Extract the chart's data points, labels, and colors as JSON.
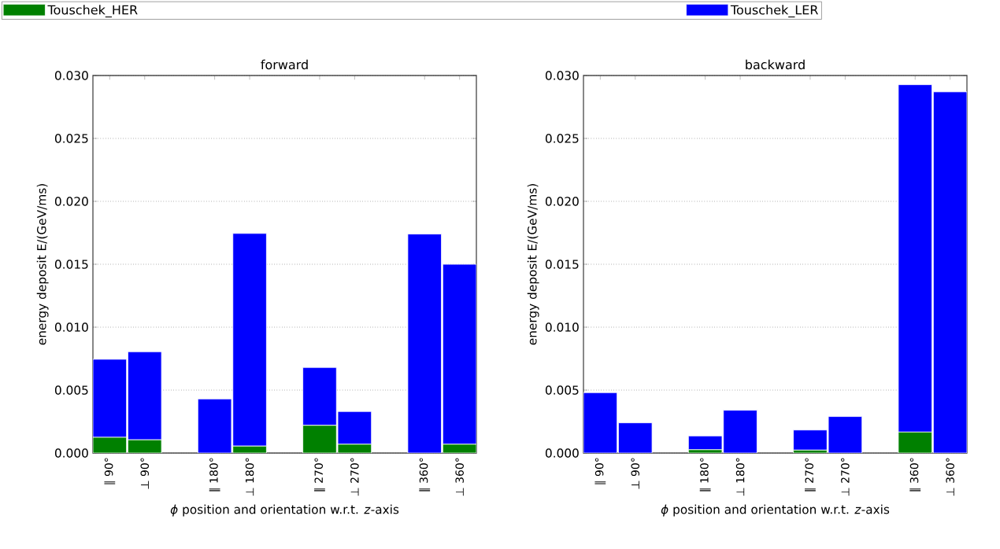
{
  "chart_data": [
    {
      "type": "bar",
      "stacked": true,
      "title": "forward",
      "xlabel": "*ϕ* position and orientation w.r.t. *z*-axis",
      "ylabel": "energy deposit E/(GeV/ms)",
      "categories": [
        "∥ 90°",
        "⊥ 90°",
        null,
        "∥ 180°",
        "⊥ 180°",
        null,
        "∥ 270°",
        "⊥ 270°",
        null,
        "∥ 360°",
        "⊥ 360°"
      ],
      "series": [
        {
          "name": "Touschek_HER",
          "color": "#008000",
          "values": [
            0.00125,
            0.00105,
            null,
            0,
            0.00055,
            null,
            0.0022,
            0.0007,
            null,
            0,
            0.0007
          ]
        },
        {
          "name": "Touschek_LER",
          "color": "#0000ff",
          "values": [
            0.0062,
            0.007,
            null,
            0.0043,
            0.0169,
            null,
            0.0046,
            0.0026,
            null,
            0.0174,
            0.0143
          ]
        }
      ],
      "ylim": [
        0,
        0.03
      ],
      "yticks": [
        {
          "value": 0,
          "label": "0.000"
        },
        {
          "value": 0.005,
          "label": "0.005"
        },
        {
          "value": 0.01,
          "label": "0.010"
        },
        {
          "value": 0.015,
          "label": "0.015"
        },
        {
          "value": 0.02,
          "label": "0.020"
        },
        {
          "value": 0.025,
          "label": "0.025"
        },
        {
          "value": 0.03,
          "label": "0.030"
        }
      ],
      "grid": "y",
      "legend": "top"
    },
    {
      "type": "bar",
      "stacked": true,
      "title": "backward",
      "xlabel": "*ϕ* position and orientation w.r.t. *z*-axis",
      "ylabel": "energy deposit E/(GeV/ms)",
      "categories": [
        "∥ 90°",
        "⊥ 90°",
        null,
        "∥ 180°",
        "⊥ 180°",
        null,
        "∥ 270°",
        "⊥ 270°",
        null,
        "∥ 360°",
        "⊥ 360°"
      ],
      "series": [
        {
          "color": "#008000",
          "values": [
            0,
            0,
            null,
            0.00026,
            0,
            null,
            0.00023,
            0,
            null,
            0.00167,
            0
          ]
        },
        {
          "color": "#0000ff",
          "values": [
            0.0048,
            0.0024,
            null,
            0.0011,
            0.0034,
            null,
            0.0016,
            0.0029,
            null,
            0.0276,
            0.0287
          ]
        }
      ],
      "ylim": [
        0,
        0.03
      ],
      "yticks": [
        {
          "value": 0,
          "label": "0.000"
        },
        {
          "value": 0.005,
          "label": "0.005"
        },
        {
          "value": 0.01,
          "label": "0.010"
        },
        {
          "value": 0.015,
          "label": "0.015"
        },
        {
          "value": 0.02,
          "label": "0.020"
        },
        {
          "value": 0.025,
          "label": "0.025"
        },
        {
          "value": 0.03,
          "label": "0.030"
        }
      ],
      "grid": "y"
    }
  ]
}
